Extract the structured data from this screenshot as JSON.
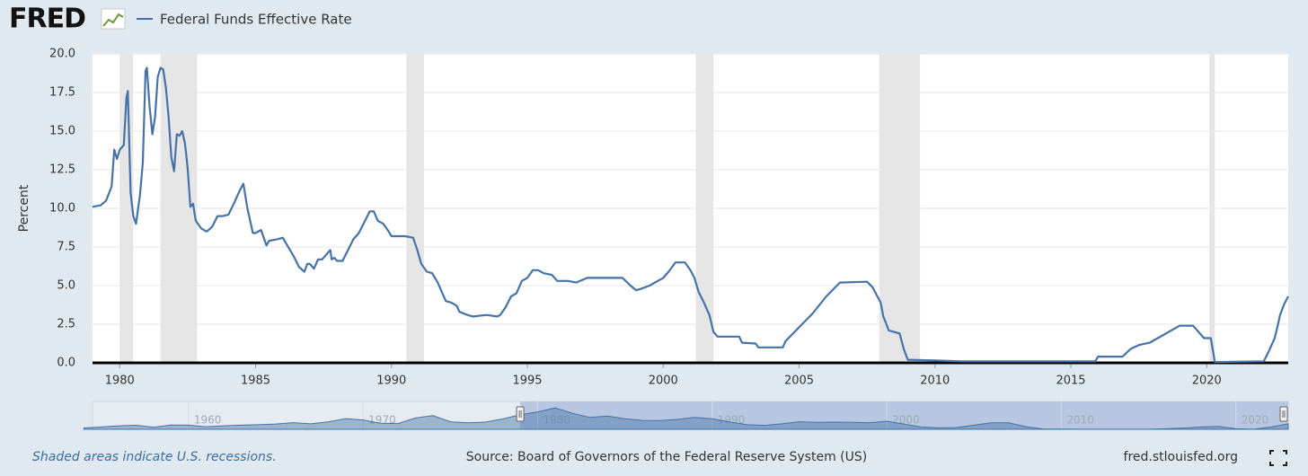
{
  "header": {
    "logo": "FRED"
  },
  "chart_data": {
    "type": "line",
    "y_label": "Percent",
    "series": [
      {
        "name": "Federal Funds Effective Rate",
        "color": "#4572a7",
        "x": [
          1979.0,
          1979.3,
          1979.5,
          1979.7,
          1979.8,
          1979.9,
          1980.0,
          1980.15,
          1980.25,
          1980.3,
          1980.4,
          1980.5,
          1980.6,
          1980.75,
          1980.85,
          1980.95,
          1981.0,
          1981.1,
          1981.2,
          1981.3,
          1981.4,
          1981.5,
          1981.6,
          1981.7,
          1981.8,
          1981.9,
          1982.0,
          1982.1,
          1982.2,
          1982.3,
          1982.4,
          1982.5,
          1982.6,
          1982.7,
          1982.8,
          1983.0,
          1983.2,
          1983.4,
          1983.6,
          1983.8,
          1984.0,
          1984.2,
          1984.4,
          1984.55,
          1984.7,
          1984.9,
          1985.0,
          1985.2,
          1985.4,
          1985.5,
          1985.8,
          1986.0,
          1986.2,
          1986.4,
          1986.6,
          1986.8,
          1986.9,
          1987.0,
          1987.15,
          1987.3,
          1987.45,
          1987.6,
          1987.75,
          1987.8,
          1987.9,
          1988.0,
          1988.2,
          1988.4,
          1988.6,
          1988.8,
          1989.0,
          1989.2,
          1989.35,
          1989.5,
          1989.7,
          1989.9,
          1990.0,
          1990.3,
          1990.5,
          1990.8,
          1990.95,
          1991.1,
          1991.3,
          1991.5,
          1991.7,
          1991.9,
          1992.0,
          1992.2,
          1992.4,
          1992.5,
          1992.8,
          1993.0,
          1993.5,
          1993.9,
          1994.0,
          1994.2,
          1994.4,
          1994.6,
          1994.8,
          1995.0,
          1995.2,
          1995.4,
          1995.6,
          1995.9,
          1996.1,
          1996.5,
          1996.8,
          1997.2,
          1997.5,
          1997.8,
          1998.2,
          1998.5,
          1998.8,
          1999.0,
          1999.2,
          1999.5,
          1999.8,
          2000.0,
          2000.2,
          2000.45,
          2000.8,
          2001.0,
          2001.15,
          2001.3,
          2001.5,
          2001.7,
          2001.85,
          2002.0,
          2002.8,
          2002.9,
          2003.4,
          2003.5,
          2004.4,
          2004.5,
          2005.0,
          2005.5,
          2006.0,
          2006.5,
          2007.5,
          2007.7,
          2008.0,
          2008.1,
          2008.3,
          2008.7,
          2008.85,
          2009.0,
          2010.0,
          2011.0,
          2015.9,
          2016.0,
          2016.9,
          2017.2,
          2017.5,
          2017.9,
          2018.2,
          2018.5,
          2018.8,
          2019.0,
          2019.5,
          2019.7,
          2019.9,
          2020.15,
          2020.3,
          2022.1,
          2022.3,
          2022.5,
          2022.6,
          2022.7,
          2022.85,
          2023.0
        ],
        "values": [
          10.1,
          10.2,
          10.5,
          11.4,
          13.8,
          13.2,
          13.8,
          14.1,
          17.2,
          17.6,
          11.0,
          9.5,
          9.0,
          10.9,
          13.0,
          18.9,
          19.1,
          16.6,
          14.8,
          15.9,
          18.5,
          19.1,
          19.0,
          17.8,
          15.9,
          13.3,
          12.4,
          14.8,
          14.7,
          15.0,
          14.2,
          12.6,
          10.1,
          10.3,
          9.2,
          8.7,
          8.5,
          8.8,
          9.5,
          9.5,
          9.6,
          10.3,
          11.1,
          11.6,
          10.0,
          8.4,
          8.4,
          8.6,
          7.6,
          7.9,
          8.0,
          8.1,
          7.5,
          6.9,
          6.2,
          5.9,
          6.4,
          6.4,
          6.1,
          6.7,
          6.7,
          7.0,
          7.3,
          6.7,
          6.8,
          6.6,
          6.6,
          7.3,
          8.0,
          8.4,
          9.1,
          9.8,
          9.8,
          9.2,
          9.0,
          8.5,
          8.2,
          8.2,
          8.2,
          8.1,
          7.3,
          6.4,
          5.9,
          5.8,
          5.2,
          4.4,
          4.0,
          3.9,
          3.7,
          3.3,
          3.1,
          3.0,
          3.1,
          3.0,
          3.1,
          3.6,
          4.3,
          4.5,
          5.3,
          5.5,
          6.0,
          6.0,
          5.8,
          5.7,
          5.3,
          5.3,
          5.2,
          5.5,
          5.5,
          5.5,
          5.5,
          5.5,
          5.0,
          4.7,
          4.8,
          5.0,
          5.3,
          5.5,
          5.9,
          6.5,
          6.5,
          6.0,
          5.5,
          4.6,
          3.9,
          3.1,
          2.0,
          1.7,
          1.7,
          1.3,
          1.25,
          1.0,
          1.0,
          1.4,
          2.3,
          3.2,
          4.3,
          5.2,
          5.25,
          4.9,
          3.9,
          3.0,
          2.1,
          1.9,
          0.9,
          0.2,
          0.15,
          0.1,
          0.1,
          0.4,
          0.4,
          0.9,
          1.15,
          1.3,
          1.6,
          1.9,
          2.2,
          2.4,
          2.4,
          2.0,
          1.6,
          1.6,
          0.05,
          0.1,
          0.8,
          1.6,
          2.3,
          3.1,
          3.8,
          4.3
        ]
      }
    ],
    "recessions": [
      [
        1980.0,
        1980.5
      ],
      [
        1981.5,
        1982.85
      ],
      [
        1990.55,
        1991.2
      ],
      [
        2001.2,
        2001.85
      ],
      [
        2007.95,
        2009.45
      ],
      [
        2020.1,
        2020.3
      ]
    ],
    "xlim": [
      1979,
      2023
    ],
    "xticks": [
      1980,
      1985,
      1990,
      1995,
      2000,
      2005,
      2010,
      2015,
      2020
    ],
    "ylim": [
      0,
      20
    ],
    "yticks": [
      {
        "value": 0,
        "label": "0.0"
      },
      2.5,
      {
        "value": 5,
        "label": "5.0"
      },
      7.5,
      {
        "value": 10,
        "label": "10.0"
      },
      12.5,
      {
        "value": 15,
        "label": "15.0"
      },
      17.5,
      {
        "value": 20,
        "label": "20.0"
      }
    ],
    "grid": true,
    "navigator": {
      "x": [
        1954,
        1955,
        1956,
        1957,
        1958,
        1959,
        1960,
        1961,
        1962,
        1963,
        1964,
        1965,
        1966,
        1967,
        1968,
        1969,
        1970,
        1971,
        1972,
        1973,
        1974,
        1975,
        1976,
        1977,
        1978,
        1979,
        1980,
        1981,
        1982,
        1983,
        1984,
        1985,
        1986,
        1987,
        1988,
        1989,
        1990,
        1991,
        1992,
        1993,
        1994,
        1995,
        1996,
        1997,
        1998,
        1999,
        2000,
        2001,
        2002,
        2003,
        2004,
        2005,
        2006,
        2007,
        2008,
        2009,
        2010,
        2011,
        2012,
        2013,
        2014,
        2015,
        2016,
        2017,
        2018,
        2019,
        2020,
        2021,
        2022,
        2023
      ],
      "values": [
        1.0,
        1.8,
        2.7,
        3.1,
        1.6,
        3.3,
        3.2,
        2.0,
        2.7,
        3.2,
        3.5,
        4.1,
        5.1,
        4.2,
        5.7,
        8.2,
        7.2,
        4.7,
        4.4,
        8.7,
        10.5,
        5.8,
        5.0,
        5.5,
        7.9,
        11.2,
        13.4,
        16.4,
        12.3,
        9.1,
        10.2,
        8.1,
        6.8,
        6.7,
        7.6,
        9.2,
        8.1,
        5.7,
        3.5,
        3.0,
        4.2,
        5.8,
        5.3,
        5.5,
        5.4,
        5.0,
        6.2,
        3.9,
        1.7,
        1.1,
        1.4,
        3.2,
        5.0,
        5.0,
        1.9,
        0.2,
        0.2,
        0.1,
        0.1,
        0.1,
        0.1,
        0.1,
        0.4,
        1.0,
        1.8,
        2.2,
        0.4,
        0.1,
        1.7,
        4.3
      ],
      "xlim": [
        1954.5,
        2023
      ],
      "xticks": [
        1960,
        1970,
        1980,
        1990,
        2000,
        2010,
        2020
      ]
    }
  },
  "footer": {
    "note": "Shaded areas indicate U.S. recessions.",
    "source": "Source: Board of Governors of the Federal Reserve System (US)",
    "site": "fred.stlouisfed.org"
  }
}
